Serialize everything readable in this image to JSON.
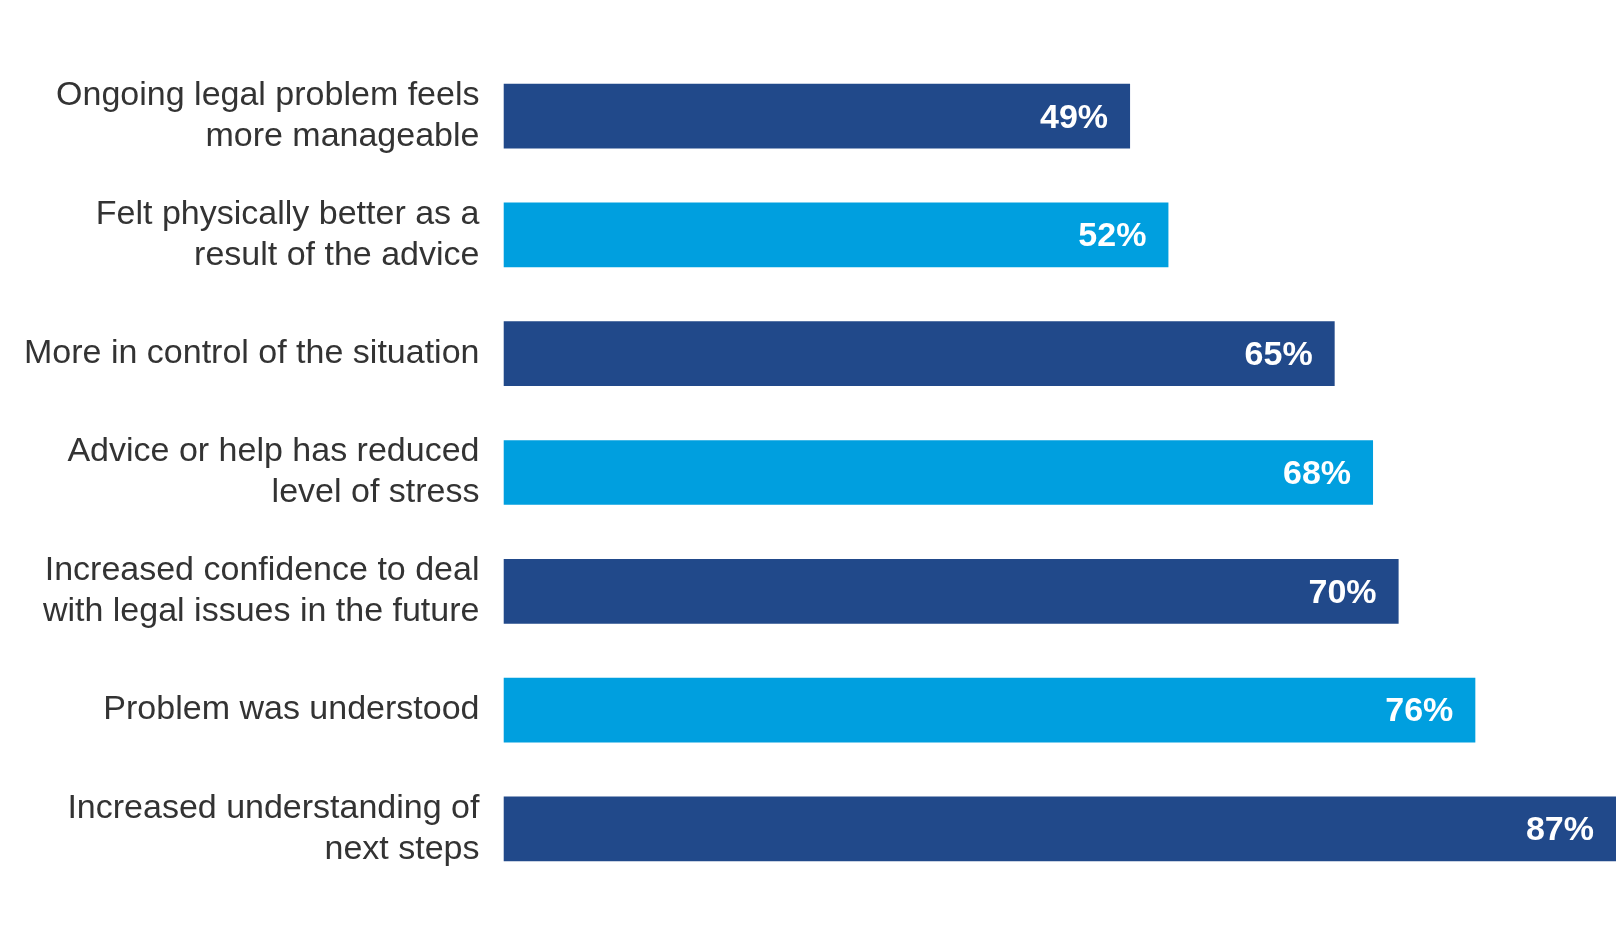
{
  "chart_data": {
    "type": "bar",
    "orientation": "horizontal",
    "categories": [
      "Ongoing legal problem feels more manageable",
      "Felt physically better as a result of the advice",
      "More in control of the situation",
      "Advice or help has reduced level of stress",
      "Increased confidence to deal with legal issues in the future",
      "Problem was understood",
      "Increased understanding of next steps"
    ],
    "values": [
      49,
      52,
      65,
      68,
      70,
      76,
      87
    ],
    "colors": [
      "#21498a",
      "#009fdf",
      "#21498a",
      "#009fdf",
      "#21498a",
      "#009fdf",
      "#21498a"
    ],
    "value_labels": [
      "49%",
      "52%",
      "65%",
      "68%",
      "70%",
      "76%",
      "87%"
    ],
    "xlim": [
      0,
      87
    ]
  }
}
